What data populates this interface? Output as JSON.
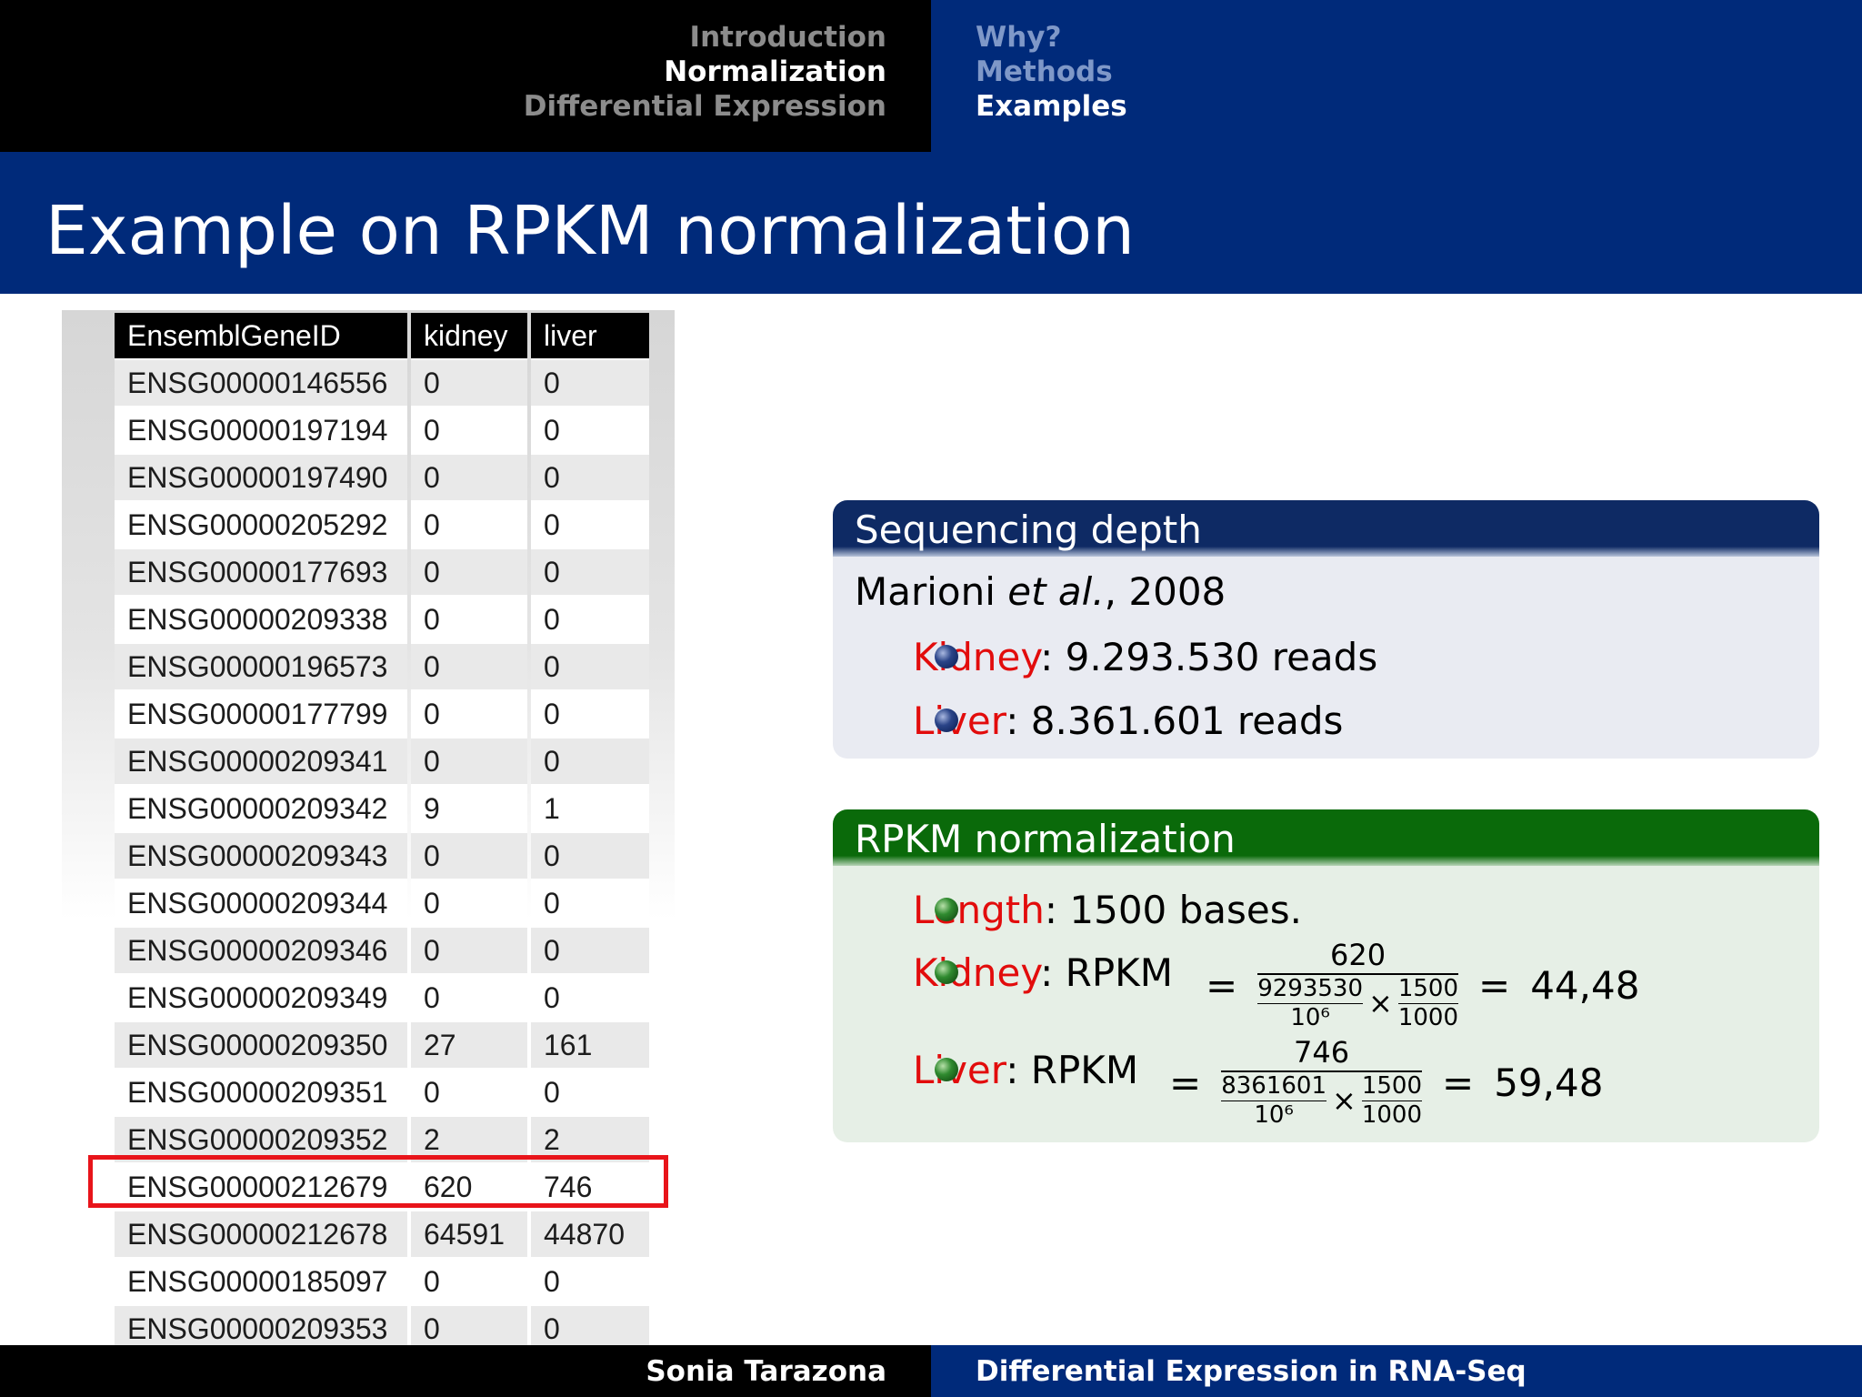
{
  "header": {
    "sections": [
      "Introduction",
      "Normalization",
      "Differential Expression"
    ],
    "active_section": 1,
    "subsections": [
      "Why?",
      "Methods",
      "Examples"
    ],
    "active_subsection": 2
  },
  "slide_title": "Example on RPKM normalization",
  "table": {
    "columns": [
      "EnsemblGeneID",
      "kidney",
      "liver"
    ],
    "rows": [
      [
        "ENSG00000146556",
        "0",
        "0"
      ],
      [
        "ENSG00000197194",
        "0",
        "0"
      ],
      [
        "ENSG00000197490",
        "0",
        "0"
      ],
      [
        "ENSG00000205292",
        "0",
        "0"
      ],
      [
        "ENSG00000177693",
        "0",
        "0"
      ],
      [
        "ENSG00000209338",
        "0",
        "0"
      ],
      [
        "ENSG00000196573",
        "0",
        "0"
      ],
      [
        "ENSG00000177799",
        "0",
        "0"
      ],
      [
        "ENSG00000209341",
        "0",
        "0"
      ],
      [
        "ENSG00000209342",
        "9",
        "1"
      ],
      [
        "ENSG00000209343",
        "0",
        "0"
      ],
      [
        "ENSG00000209344",
        "0",
        "0"
      ],
      [
        "ENSG00000209346",
        "0",
        "0"
      ],
      [
        "ENSG00000209349",
        "0",
        "0"
      ],
      [
        "ENSG00000209350",
        "27",
        "161"
      ],
      [
        "ENSG00000209351",
        "0",
        "0"
      ],
      [
        "ENSG00000209352",
        "2",
        "2"
      ],
      [
        "ENSG00000212679",
        "620",
        "746"
      ],
      [
        "ENSG00000212678",
        "64591",
        "44870"
      ],
      [
        "ENSG00000185097",
        "0",
        "0"
      ],
      [
        "ENSG00000209353",
        "0",
        "0"
      ]
    ],
    "highlighted_row": 17,
    "highlight_color": "#e8141a"
  },
  "depth_block": {
    "title": "Sequencing depth",
    "ref_author": "Marioni ",
    "ref_etal": "et al.",
    "ref_year": ", 2008",
    "items": [
      {
        "label": "Kidney",
        "text": ": 9.293.530 reads"
      },
      {
        "label": "Liver",
        "text": ": 8.361.601 reads"
      }
    ]
  },
  "rpkm_block": {
    "title": "RPKM normalization",
    "length_label": "Length",
    "length_text": ": 1500 bases.",
    "formulas": [
      {
        "label": "Kidney",
        "lhs": ": RPKM",
        "eq": "=",
        "reads": "620",
        "depth": "9293530",
        "scale": "10⁶",
        "times": "×",
        "len": "1500",
        "len_den": "1000",
        "result": "44,48"
      },
      {
        "label": "Liver",
        "lhs": ": RPKM",
        "eq": "=",
        "reads": "746",
        "depth": "8361601",
        "scale": "10⁶",
        "times": "×",
        "len": "1500",
        "len_den": "1000",
        "result": "59,48"
      }
    ]
  },
  "footer": {
    "author": "Sonia Tarazona",
    "talk_title": "Differential Expression in RNA-Seq"
  },
  "colors": {
    "header_blue": "#002a7a",
    "block_blue": "#0e2a64",
    "block_green": "#0a6a0a",
    "alert_red": "#e20c0c"
  }
}
